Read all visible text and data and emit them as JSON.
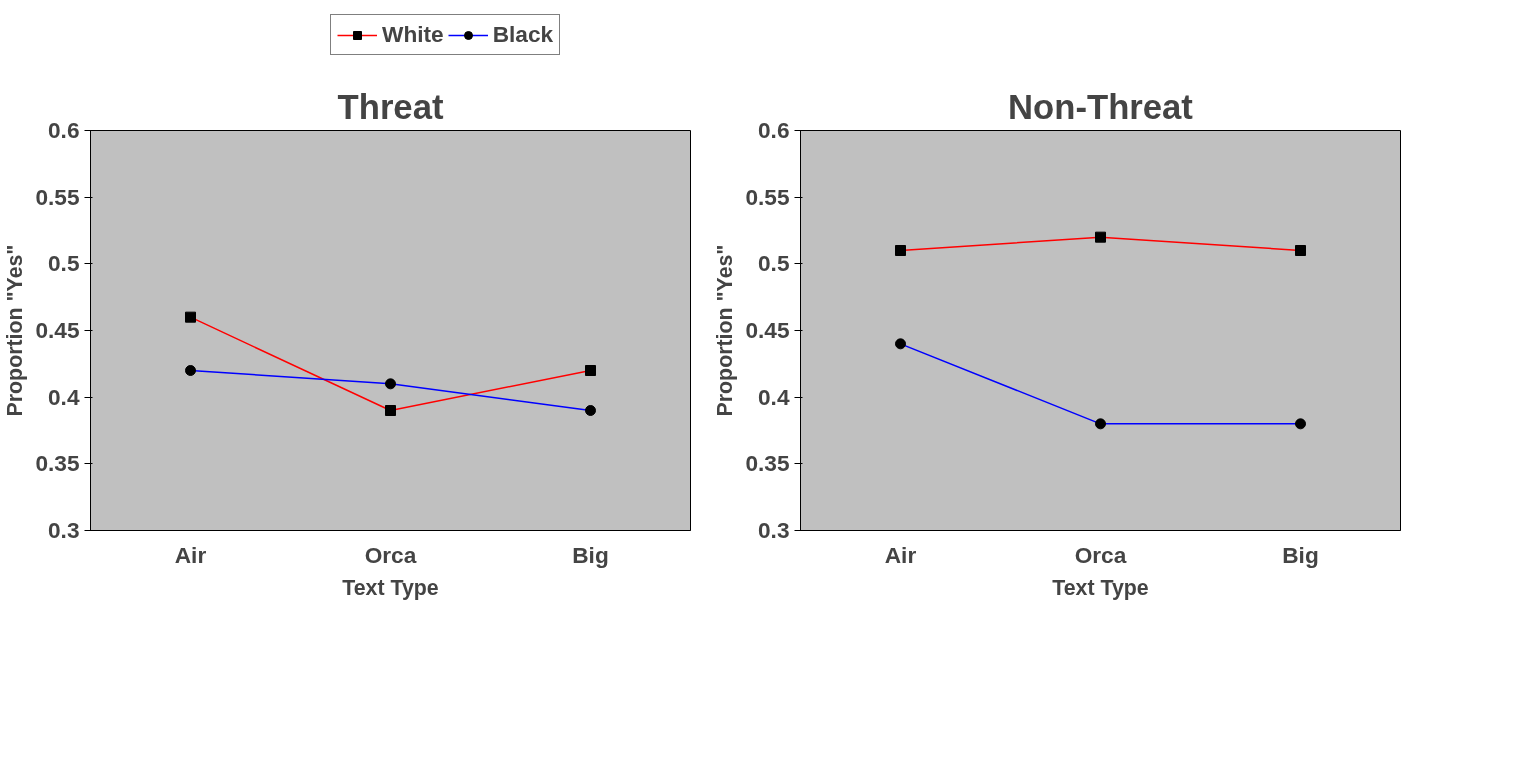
{
  "chart_data": [
    {
      "type": "line",
      "title": "Threat",
      "xlabel": "Text Type",
      "ylabel": "Proportion \"Yes\"",
      "categories": [
        "Air",
        "Orca",
        "Big"
      ],
      "ylim": [
        0.3,
        0.6
      ],
      "yticks": [
        0.3,
        0.35,
        0.4,
        0.45,
        0.5,
        0.55,
        0.6
      ],
      "grid": false,
      "legend": "top",
      "series": [
        {
          "name": "White",
          "color": "#ff0000",
          "marker": "square",
          "values": [
            0.46,
            0.39,
            0.42
          ]
        },
        {
          "name": "Black",
          "color": "#0000ff",
          "marker": "circle",
          "values": [
            0.42,
            0.41,
            0.39
          ]
        }
      ]
    },
    {
      "type": "line",
      "title": "Non-Threat",
      "xlabel": "Text Type",
      "ylabel": "Proportion \"Yes\"",
      "categories": [
        "Air",
        "Orca",
        "Big"
      ],
      "ylim": [
        0.3,
        0.6
      ],
      "yticks": [
        0.3,
        0.35,
        0.4,
        0.45,
        0.5,
        0.55,
        0.6
      ],
      "grid": false,
      "series": [
        {
          "color": "#ff0000",
          "marker": "square",
          "values": [
            0.51,
            0.52,
            0.51
          ]
        },
        {
          "color": "#0000ff",
          "marker": "circle",
          "values": [
            0.44,
            0.38,
            0.38
          ]
        }
      ]
    }
  ]
}
